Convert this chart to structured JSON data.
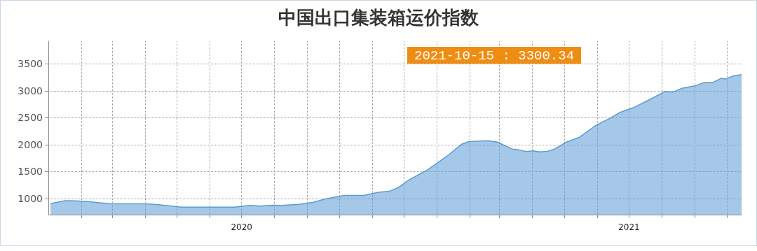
{
  "chart_data": {
    "type": "area",
    "title": "中国出口集装箱运价指数",
    "x": [
      "2020-01-03",
      "2020-01-17",
      "2020-01-26",
      "2020-02-07",
      "2020-02-18",
      "2020-02-29",
      "2020-04-01",
      "2020-04-14",
      "2020-05-05",
      "2020-06-24",
      "2020-07-09",
      "2020-07-19",
      "2020-07-30",
      "2020-08-08",
      "2020-08-24",
      "2020-09-06",
      "2020-09-18",
      "2020-10-06",
      "2020-10-24",
      "2020-11-07",
      "2020-11-17",
      "2020-11-26",
      "2020-12-05",
      "2020-12-17",
      "2020-12-23",
      "2021-01-06",
      "2021-01-12",
      "2021-01-24",
      "2021-01-31",
      "2021-02-18",
      "2021-02-27",
      "2021-03-13",
      "2021-03-18",
      "2021-03-26",
      "2021-04-02",
      "2021-04-08",
      "2021-04-15",
      "2021-04-22",
      "2021-05-03",
      "2021-05-15",
      "2021-05-30",
      "2021-06-13",
      "2021-06-22",
      "2021-07-06",
      "2021-07-19",
      "2021-08-04",
      "2021-08-11",
      "2021-08-20",
      "2021-09-01",
      "2021-09-10",
      "2021-09-18",
      "2021-09-26",
      "2021-09-30",
      "2021-10-08",
      "2021-10-15"
    ],
    "series": [
      {
        "color": "#5b9bd5",
        "values": [
          905,
          961,
          957,
          944,
          922,
          901,
          901,
          884,
          840,
          840,
          871,
          858,
          875,
          871,
          892,
          927,
          991,
          1056,
          1056,
          1116,
          1134,
          1207,
          1336,
          1466,
          1530,
          1724,
          1810,
          2004,
          2056,
          2073,
          2047,
          1918,
          1909,
          1871,
          1884,
          1866,
          1875,
          1918,
          2047,
          2134,
          2349,
          2491,
          2595,
          2694,
          2823,
          2987,
          2974,
          3047,
          3091,
          3155,
          3155,
          3233,
          3220,
          3280,
          3300.34
        ]
      }
    ],
    "xlim": [
      "2020-01-01",
      "2021-10-15"
    ],
    "xticks": [
      {
        "value": "2020-02-01",
        "label": null
      },
      {
        "value": "2020-03-01",
        "label": null
      },
      {
        "value": "2020-04-01",
        "label": null
      },
      {
        "value": "2020-05-01",
        "label": null
      },
      {
        "value": "2020-06-01",
        "label": null
      },
      {
        "value": "2020-07-01",
        "label": "2020"
      },
      {
        "value": "2020-08-01",
        "label": null
      },
      {
        "value": "2020-09-01",
        "label": null
      },
      {
        "value": "2020-10-01",
        "label": null
      },
      {
        "value": "2020-11-01",
        "label": null
      },
      {
        "value": "2020-12-01",
        "label": null
      },
      {
        "value": "2021-01-01",
        "label": null
      },
      {
        "value": "2021-02-01",
        "label": null
      },
      {
        "value": "2021-03-01",
        "label": null
      },
      {
        "value": "2021-04-01",
        "label": null
      },
      {
        "value": "2021-05-01",
        "label": null
      },
      {
        "value": "2021-06-01",
        "label": null
      },
      {
        "value": "2021-07-01",
        "label": "2021"
      },
      {
        "value": "2021-08-01",
        "label": null
      },
      {
        "value": "2021-09-01",
        "label": null
      },
      {
        "value": "2021-10-01",
        "label": null
      }
    ],
    "ylim": [
      700,
      3920
    ],
    "yticks": [
      1000,
      1500,
      2000,
      2500,
      3000,
      3500
    ],
    "grid": true,
    "annotations": [
      "2021-10-15 : 3300.34"
    ]
  }
}
